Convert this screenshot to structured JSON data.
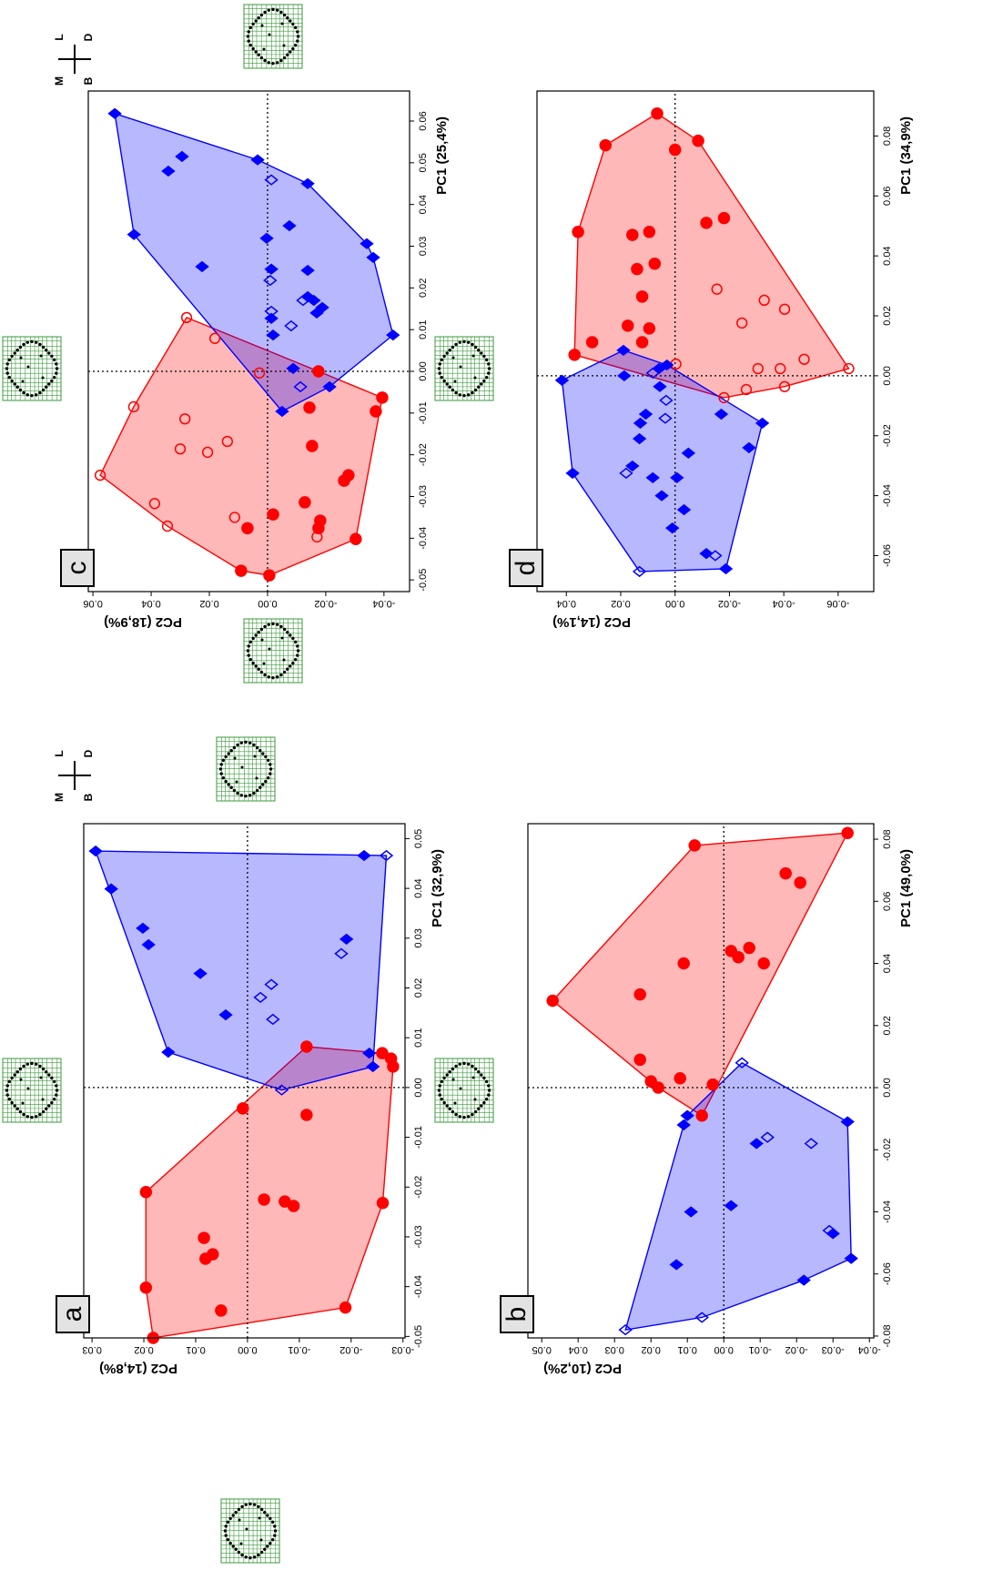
{
  "chart_data": [
    {
      "type": "scatter",
      "label": "a",
      "xlabel": "PC1 (32,9%)",
      "ylabel": "PC2 (14,8%)",
      "xlim": [
        -0.0503,
        0.053
      ],
      "ylim": [
        -0.0304,
        0.0316
      ],
      "xticks": [
        -0.05,
        -0.04,
        -0.03,
        -0.02,
        -0.01,
        {
          "value": 0,
          "label": "0.00"
        },
        0.01,
        0.02,
        0.03,
        0.04,
        0.05
      ],
      "yticks": [
        -0.03,
        -0.02,
        -0.01,
        {
          "value": 0,
          "label": "0.00"
        },
        0.01,
        0.02,
        0.03
      ],
      "hull": true,
      "zero_lines": true,
      "orientation": [
        "M",
        "L",
        "B",
        "D"
      ],
      "series": [
        {
          "color": "#ff0000",
          "marker": "circle",
          "filled": true,
          "x": [
            -0.0503,
            -0.0402,
            -0.021,
            -0.0448,
            -0.0302,
            -0.0344,
            -0.0335,
            -0.0225,
            -0.0229,
            -0.0238,
            -0.0042,
            -0.0055,
            -0.0232,
            -0.0442,
            0.0069,
            0.0058,
            0.0042,
            0.0082
          ],
          "y": [
            0.0182,
            0.0196,
            0.0196,
            0.0051,
            0.0084,
            0.0081,
            0.0067,
            -0.0032,
            -0.0072,
            -0.0089,
            0.0009,
            -0.0114,
            -0.0261,
            -0.0189,
            -0.026,
            -0.0277,
            -0.0281,
            -0.0114
          ]
        },
        {
          "color": "#0000ff",
          "marker": "diamond",
          "filled": true,
          "x": [
            0.0475,
            0.0399,
            0.032,
            0.0287,
            0.0071,
            0.0229,
            0.0146,
            0.0298,
            0.0069,
            0.0466,
            0.0042
          ],
          "y": [
            0.0293,
            0.0263,
            0.0202,
            0.0191,
            0.0153,
            0.0091,
            0.0042,
            -0.0191,
            -0.0235,
            -0.0225,
            -0.0242
          ]
        },
        {
          "color": "#0000ff",
          "marker": "diamond",
          "filled": false,
          "x": [
            0.0466,
            0.0269,
            0.0207,
            0.0181,
            0.0137,
            -0.0005
          ],
          "y": [
            -0.0268,
            -0.0181,
            -0.0046,
            -0.0025,
            -0.0049,
            -0.0066
          ]
        }
      ]
    },
    {
      "type": "scatter",
      "label": "b",
      "xlabel": "PC1 (49,0%)",
      "ylabel": "PC2 (10,2%)",
      "xlim": [
        -0.0806,
        0.085
      ],
      "ylim": [
        -0.0412,
        0.0538
      ],
      "xticks": [
        -0.08,
        -0.06,
        -0.04,
        -0.02,
        {
          "value": 0,
          "label": "0.00"
        },
        0.02,
        0.04,
        0.06,
        0.08
      ],
      "yticks": [
        -0.04,
        -0.03,
        -0.02,
        -0.01,
        {
          "value": 0,
          "label": "0.00"
        },
        0.01,
        0.02,
        0.03,
        0.04,
        0.05
      ],
      "hull": true,
      "zero_lines": true,
      "series": [
        {
          "color": "#ff0000",
          "marker": "circle",
          "filled": true,
          "x": [
            0.028,
            0.03,
            0.009,
            0.002,
            0.0,
            0.003,
            -0.009,
            0.001,
            0.04,
            0.042,
            0.044,
            0.045,
            0.04,
            0.069,
            0.066,
            0.082,
            0.078
          ],
          "y": [
            0.047,
            0.023,
            0.023,
            0.02,
            0.018,
            0.012,
            0.006,
            0.003,
            0.011,
            -0.004,
            -0.002,
            -0.007,
            -0.011,
            -0.017,
            -0.021,
            -0.034,
            0.008
          ]
        },
        {
          "color": "#0000ff",
          "marker": "diamond",
          "filled": true,
          "x": [
            -0.057,
            -0.04,
            -0.038,
            -0.018,
            -0.012,
            -0.009,
            -0.011,
            -0.055,
            -0.047,
            -0.062
          ],
          "y": [
            0.013,
            0.009,
            -0.002,
            -0.009,
            0.011,
            0.01,
            -0.034,
            -0.035,
            -0.03,
            -0.022
          ]
        },
        {
          "color": "#0000ff",
          "marker": "diamond",
          "filled": false,
          "x": [
            -0.078,
            -0.074,
            -0.016,
            -0.018,
            -0.046,
            0.008
          ],
          "y": [
            0.027,
            0.006,
            -0.012,
            -0.024,
            -0.029,
            -0.005
          ]
        }
      ]
    },
    {
      "type": "scatter",
      "label": "c",
      "xlabel": "PC1 (25,4%)",
      "ylabel": "PC2 (18,9%)",
      "xlim": [
        -0.0528,
        0.0672
      ],
      "ylim": [
        -0.0488,
        0.0616
      ],
      "xticks": [
        -0.05,
        -0.04,
        -0.03,
        -0.02,
        -0.01,
        {
          "value": 0,
          "label": "0.00"
        },
        0.01,
        0.02,
        0.03,
        0.04,
        0.05,
        0.06
      ],
      "yticks": [
        -0.04,
        -0.02,
        {
          "value": 0,
          "label": "0.00"
        },
        0.02,
        0.04,
        0.06
      ],
      "hull": true,
      "zero_lines": true,
      "orientation": [
        "M",
        "L",
        "B",
        "D"
      ],
      "series": [
        {
          "color": "#ff0000",
          "marker": "circle",
          "filled": true,
          "x": [
            -0.0489,
            -0.0478,
            -0.0376,
            -0.0343,
            -0.0314,
            -0.0358,
            -0.0402,
            -0.0376,
            -0.0262,
            -0.0249,
            -0.0179,
            -0.0087,
            -0.0063,
            -0.0096,
            0.0
          ],
          "y": [
            -0.0006,
            0.0091,
            0.0069,
            -0.0019,
            -0.0128,
            -0.0181,
            -0.0303,
            -0.0175,
            -0.0263,
            -0.0278,
            -0.0153,
            -0.0144,
            -0.0394,
            -0.0372,
            -0.0175
          ]
        },
        {
          "color": "#ff0000",
          "marker": "circle",
          "filled": false,
          "x": [
            -0.0249,
            -0.0085,
            -0.0317,
            -0.0371,
            -0.0186,
            -0.0114,
            -0.0194,
            -0.035,
            -0.0168,
            0.0079,
            -0.0004,
            0.0129,
            -0.0397
          ],
          "y": [
            0.0575,
            0.046,
            0.0388,
            0.0344,
            0.03,
            0.0284,
            0.0206,
            0.0113,
            0.0138,
            0.0181,
            0.0028,
            0.0278,
            -0.017
          ]
        },
        {
          "color": "#0000ff",
          "marker": "diamond",
          "filled": true,
          "x": [
            0.0618,
            0.0328,
            0.048,
            0.0515,
            0.0507,
            0.0349,
            0.0319,
            0.0245,
            0.0251,
            0.0242,
            0.045,
            0.0179,
            0.0153,
            0.014,
            0.0007,
            -0.0037,
            -0.0096,
            0.0087,
            0.0306,
            0.0273,
            0.017,
            0.0127,
            0.0087
          ],
          "y": [
            0.0525,
            0.0459,
            0.0341,
            0.0294,
            0.0034,
            -0.0075,
            0.0003,
            -0.0013,
            0.0225,
            -0.0138,
            -0.0138,
            -0.0138,
            -0.0188,
            -0.0169,
            -0.0088,
            -0.0213,
            -0.005,
            -0.0431,
            -0.0341,
            -0.0363,
            -0.0159,
            -0.0013,
            -0.0019
          ]
        },
        {
          "color": "#0000ff",
          "marker": "diamond",
          "filled": false,
          "x": [
            0.0459,
            0.0218,
            0.0109,
            -0.0037,
            0.017,
            0.0144
          ],
          "y": [
            -0.0013,
            -0.0009,
            -0.0081,
            -0.0113,
            -0.0122,
            -0.0013
          ]
        }
      ]
    },
    {
      "type": "scatter",
      "label": "d",
      "xlabel": "PC1 (34,9%)",
      "ylabel": "PC2 (14,1%)",
      "xlim": [
        -0.072,
        0.095
      ],
      "ylim": [
        -0.0731,
        0.0508
      ],
      "xticks": [
        -0.06,
        -0.04,
        -0.02,
        {
          "value": 0,
          "label": "0.00"
        },
        0.02,
        0.04,
        0.06,
        0.08
      ],
      "yticks": [
        -0.06,
        -0.04,
        -0.02,
        {
          "value": 0,
          "label": "0.00"
        },
        0.02,
        0.04
      ],
      "hull": true,
      "zero_lines": true,
      "series": [
        {
          "color": "#ff0000",
          "marker": "circle",
          "filled": true,
          "x": [
            0.0769,
            0.048,
            0.007,
            0.0112,
            0.047,
            0.0356,
            0.0264,
            0.048,
            0.0374,
            0.0158,
            0.0167,
            0.0112,
            0.0754,
            0.0784,
            0.051,
            0.0526,
            0.0875
          ],
          "y": [
            0.0256,
            0.0357,
            0.037,
            0.0305,
            0.0157,
            0.014,
            0.0121,
            0.0095,
            0.0075,
            0.0095,
            0.0174,
            0.0121,
            0.0,
            -0.0085,
            -0.0115,
            -0.018,
            0.0066
          ]
        },
        {
          "color": "#ff0000",
          "marker": "circle",
          "filled": false,
          "x": [
            0.0289,
            0.0176,
            0.0252,
            0.0222,
            0.0024,
            0.0024,
            0.0055,
            0.0024,
            -0.0073,
            -0.0046,
            -0.0036,
            0.0039
          ],
          "y": [
            -0.0154,
            -0.0246,
            -0.0328,
            -0.0403,
            -0.0305,
            -0.0387,
            -0.0475,
            -0.0639,
            -0.018,
            -0.0262,
            -0.0403,
            -0.0003
          ]
        },
        {
          "color": "#0000ff",
          "marker": "diamond",
          "filled": true,
          "x": [
            -0.0015,
            -0.0325,
            0.0085,
            0.0,
            -0.0158,
            -0.021,
            -0.0128,
            0.0024,
            0.0036,
            -0.0036,
            -0.0258,
            -0.034,
            -0.034,
            -0.04,
            -0.0447,
            -0.0508,
            -0.0593,
            -0.0644,
            -0.024,
            -0.0158,
            -0.0128,
            -0.0301
          ],
          "y": [
            0.0416,
            0.0377,
            0.019,
            0.0187,
            0.0128,
            0.0131,
            0.0108,
            0.0059,
            0.003,
            0.0056,
            -0.0049,
            0.0082,
            -0.0007,
            0.0049,
            -0.0033,
            0.001,
            -0.0115,
            -0.0187,
            -0.0272,
            -0.0321,
            -0.017,
            0.0157
          ]
        },
        {
          "color": "#0000ff",
          "marker": "diamond",
          "filled": false,
          "x": [
            -0.0325,
            -0.0653,
            -0.06,
            0.0009,
            -0.0082,
            -0.0142
          ],
          "y": [
            0.018,
            0.0131,
            -0.0148,
            0.0082,
            0.0033,
            0.0036
          ]
        }
      ]
    }
  ]
}
